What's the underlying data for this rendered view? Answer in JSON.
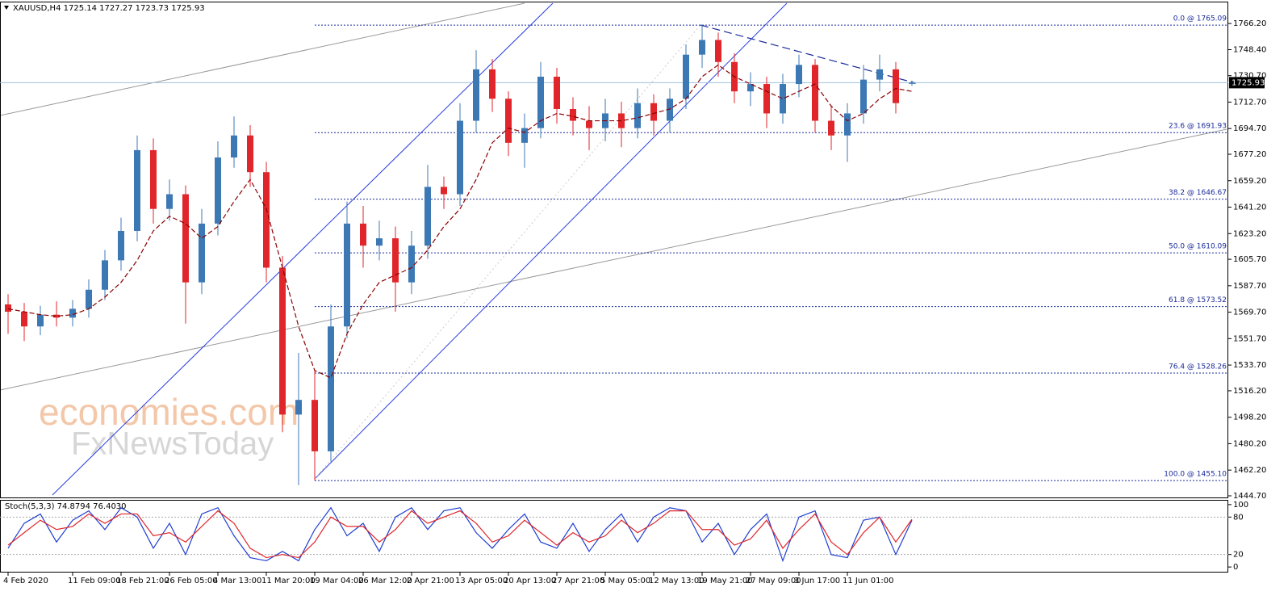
{
  "chart_data": [
    {
      "type": "candlestick",
      "title": "XAUUSD,H4  1725.14 1727.27 1723.73 1725.93",
      "categories": [
        "4 Feb 2020",
        null,
        null,
        null,
        "11 Feb 09:00",
        null,
        null,
        "18 Feb 21:00",
        null,
        null,
        "26 Feb 05:00",
        null,
        null,
        "4 Mar 13:00",
        null,
        null,
        "11 Mar 20:00",
        null,
        null,
        "19 Mar 04:00",
        null,
        null,
        "26 Mar 12:00",
        null,
        null,
        "2 Apr 21:00",
        null,
        null,
        "13 Apr 05:00",
        null,
        null,
        "20 Apr 13:00",
        null,
        null,
        "27 Apr 21:00",
        null,
        null,
        "5 May 05:00",
        null,
        null,
        "12 May 13:00",
        null,
        null,
        "19 May 21:00",
        null,
        null,
        "27 May 09:00",
        null,
        null,
        "3 Jun 17:00",
        null,
        null,
        "11 Jun 01:00",
        null,
        null,
        null,
        null
      ],
      "open": [
        1575,
        1570,
        1560,
        1568,
        1566,
        1572,
        1585,
        1605,
        1625,
        1680,
        1640,
        1650,
        1590,
        1630,
        1675,
        1690,
        1665,
        1600,
        1500,
        1510,
        1475,
        1560,
        1630,
        1615,
        1620,
        1590,
        1615,
        1655,
        1650,
        1700,
        1735,
        1715,
        1685,
        1695,
        1730,
        1708,
        1700,
        1695,
        1705,
        1695,
        1712,
        1700,
        1715,
        1745,
        1755,
        1740,
        1720,
        1725,
        1705,
        1725,
        1738,
        1700,
        1690,
        1705,
        1728,
        1735,
        1725.14
      ],
      "high": [
        1582,
        1576,
        1574,
        1577,
        1578,
        1592,
        1612,
        1634,
        1690,
        1688,
        1660,
        1656,
        1640,
        1686,
        1703,
        1697,
        1672,
        1608,
        1542,
        1530,
        1575,
        1645,
        1642,
        1632,
        1628,
        1625,
        1670,
        1662,
        1712,
        1748,
        1742,
        1720,
        1705,
        1740,
        1736,
        1716,
        1710,
        1715,
        1713,
        1722,
        1718,
        1722,
        1752,
        1765.09,
        1760,
        1746,
        1733,
        1730,
        1732,
        1745,
        1742,
        1710,
        1712,
        1738,
        1745,
        1740,
        1727.27
      ],
      "low": [
        1555,
        1550,
        1554,
        1560,
        1560,
        1566,
        1578,
        1598,
        1618,
        1630,
        1632,
        1562,
        1582,
        1622,
        1668,
        1655,
        1590,
        1488,
        1452,
        1455.1,
        1468,
        1552,
        1600,
        1605,
        1570,
        1582,
        1606,
        1640,
        1642,
        1692,
        1706,
        1676,
        1668,
        1688,
        1698,
        1690,
        1680,
        1686,
        1682,
        1688,
        1690,
        1692,
        1708,
        1736,
        1730,
        1712,
        1710,
        1695,
        1698,
        1716,
        1692,
        1680,
        1672,
        1698,
        1720,
        1705,
        1723.73
      ],
      "close": [
        1570,
        1560,
        1568,
        1566,
        1572,
        1585,
        1605,
        1625,
        1680,
        1640,
        1650,
        1590,
        1630,
        1675,
        1690,
        1665,
        1600,
        1500,
        1510,
        1475,
        1560,
        1630,
        1615,
        1620,
        1590,
        1615,
        1655,
        1650,
        1700,
        1735,
        1715,
        1685,
        1695,
        1730,
        1708,
        1700,
        1695,
        1705,
        1695,
        1712,
        1700,
        1715,
        1745,
        1755,
        1740,
        1720,
        1725,
        1705,
        1725,
        1738,
        1700,
        1690,
        1705,
        1728,
        1735,
        1712,
        1725.93
      ],
      "ma": [
        1572,
        1570,
        1568,
        1567,
        1568,
        1572,
        1580,
        1590,
        1605,
        1625,
        1635,
        1630,
        1620,
        1628,
        1645,
        1660,
        1640,
        1600,
        1560,
        1530,
        1525,
        1555,
        1575,
        1590,
        1595,
        1600,
        1612,
        1628,
        1640,
        1660,
        1685,
        1695,
        1692,
        1700,
        1705,
        1703,
        1700,
        1700,
        1700,
        1702,
        1705,
        1708,
        1715,
        1730,
        1738,
        1730,
        1725,
        1720,
        1715,
        1720,
        1725,
        1710,
        1700,
        1705,
        1715,
        1722,
        1720
      ],
      "up_color": "#3c78b4",
      "down_color": "#e0262b",
      "ma_color": "#8b0000",
      "current_price": 1725.93,
      "fib_levels": [
        {
          "value": 1765.09,
          "label": "0.0 @ 1765.09"
        },
        {
          "value": 1691.93,
          "label": "23.6 @ 1691.93"
        },
        {
          "value": 1646.67,
          "label": "38.2 @ 1646.67"
        },
        {
          "value": 1610.09,
          "label": "50.0 @ 1610.09"
        },
        {
          "value": 1573.52,
          "label": "61.8 @ 1573.52"
        },
        {
          "value": 1528.26,
          "label": "76.4 @ 1528.26"
        },
        {
          "value": 1455.1,
          "label": "100.0 @ 1455.10"
        }
      ],
      "ylim": [
        1443.6,
        1781.1
      ],
      "yticks": [
        {
          "value": 1766.2,
          "label": "1766.20"
        },
        {
          "value": 1748.4,
          "label": "1748.40"
        },
        {
          "value": 1730.7,
          "label": "1730.70"
        },
        {
          "value": 1712.7,
          "label": "1712.70"
        },
        {
          "value": 1694.7,
          "label": "1694.70"
        },
        {
          "value": 1677.2,
          "label": "1677.20"
        },
        {
          "value": 1659.2,
          "label": "1659.20"
        },
        {
          "value": 1641.2,
          "label": "1641.20"
        },
        {
          "value": 1623.2,
          "label": "1623.20"
        },
        {
          "value": 1605.7,
          "label": "1605.70"
        },
        {
          "value": 1587.7,
          "label": "1587.70"
        },
        {
          "value": 1569.7,
          "label": "1569.70"
        },
        {
          "value": 1551.7,
          "label": "1551.70"
        },
        {
          "value": 1533.7,
          "label": "1533.70"
        },
        {
          "value": 1516.2,
          "label": "1516.20"
        },
        {
          "value": 1498.2,
          "label": "1498.20"
        },
        {
          "value": 1480.2,
          "label": "1480.20"
        },
        {
          "value": 1462.2,
          "label": "1462.20"
        },
        {
          "value": 1444.7,
          "label": "1444.70"
        }
      ]
    },
    {
      "type": "line",
      "title": "Stoch(5,3,3) 74.8794 76.4030",
      "series": [
        {
          "color": "#1f3fd0",
          "values": [
            30,
            70,
            85,
            40,
            75,
            90,
            60,
            95,
            80,
            30,
            70,
            20,
            85,
            95,
            50,
            15,
            10,
            25,
            10,
            60,
            95,
            50,
            70,
            25,
            80,
            95,
            60,
            90,
            95,
            55,
            30,
            60,
            85,
            40,
            30,
            70,
            25,
            60,
            85,
            40,
            80,
            95,
            90,
            40,
            70,
            20,
            60,
            85,
            10,
            80,
            90,
            20,
            15,
            75,
            80,
            20,
            74.8794
          ]
        },
        {
          "color": "#e0262b",
          "values": [
            35,
            55,
            75,
            60,
            65,
            85,
            70,
            85,
            85,
            50,
            55,
            40,
            65,
            90,
            70,
            30,
            15,
            20,
            15,
            40,
            80,
            65,
            65,
            40,
            60,
            90,
            70,
            80,
            90,
            70,
            40,
            50,
            75,
            55,
            35,
            55,
            40,
            50,
            75,
            55,
            70,
            90,
            90,
            60,
            60,
            35,
            45,
            75,
            30,
            60,
            85,
            40,
            20,
            55,
            80,
            40,
            76.403
          ]
        }
      ],
      "levels": [
        80,
        20
      ],
      "ylim": [
        -7.6,
        106.3
      ],
      "yticks": [
        100,
        80,
        20,
        0
      ]
    }
  ],
  "watermark": [
    "economies.com",
    "FxNewsToday"
  ]
}
